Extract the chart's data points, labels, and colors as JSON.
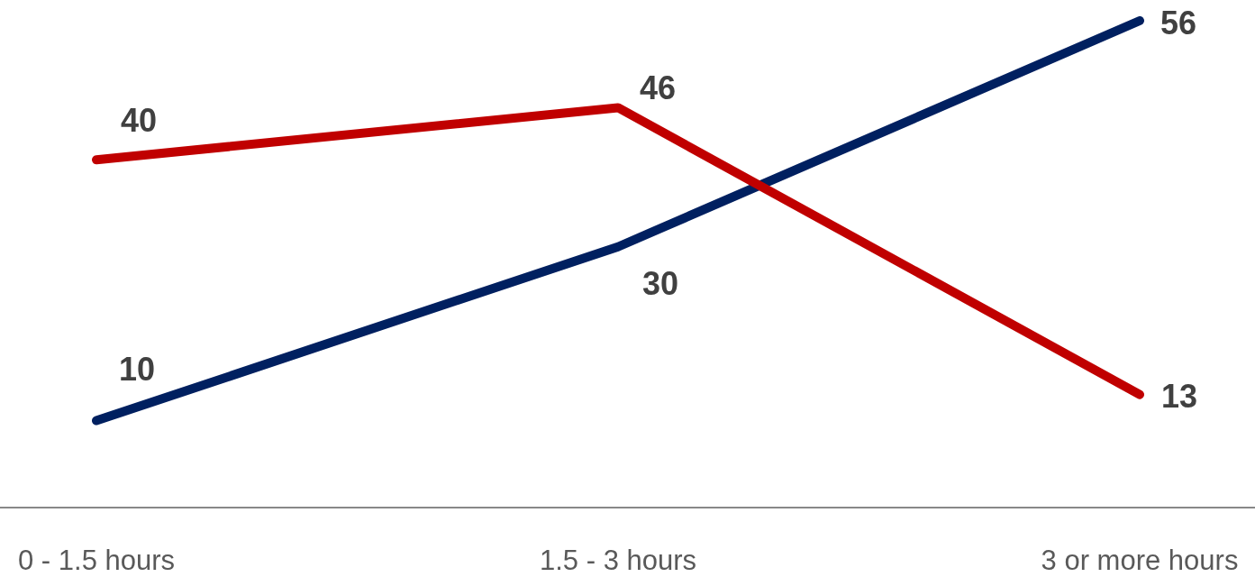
{
  "chart_data": {
    "type": "line",
    "categories": [
      "0 - 1.5 hours",
      "1.5 - 3 hours",
      "3 or more hours"
    ],
    "series": [
      {
        "color": "#002060",
        "values": [
          10,
          30,
          56
        ]
      },
      {
        "color": "#c00000",
        "values": [
          40,
          46,
          13
        ]
      }
    ],
    "data_labels": true
  }
}
